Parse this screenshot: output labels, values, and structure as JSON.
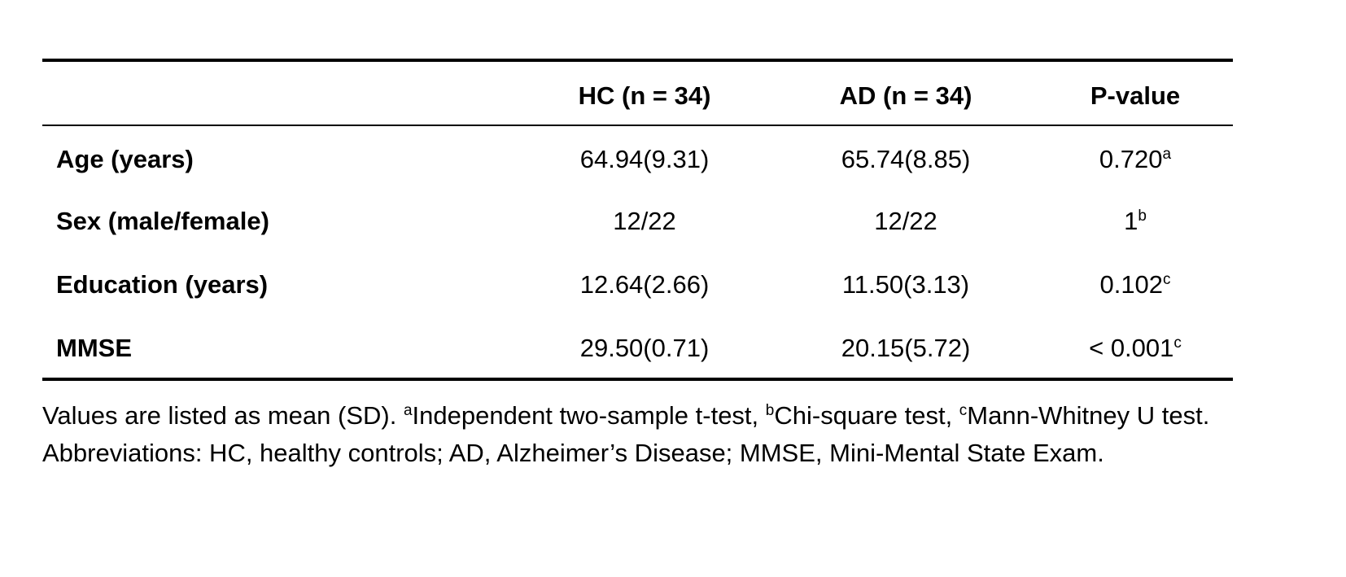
{
  "table": {
    "header": [
      "HC (n = 34)",
      "AD (n = 34)",
      "P-value"
    ],
    "rows": [
      [
        "Age (years)",
        "64.94(9.31)",
        "65.74(8.85)",
        {
          "text": "0.720",
          "sup": "a"
        }
      ],
      [
        "Sex (male/female)",
        "12/22",
        "12/22",
        {
          "text": "1",
          "sup": "b"
        }
      ],
      [
        "Education (years)",
        "12.64(2.66)",
        "11.50(3.13)",
        {
          "text": "0.102",
          "sup": "c"
        }
      ],
      [
        "MMSE",
        "29.50(0.71)",
        "20.15(5.72)",
        {
          "text": "< 0.001",
          "sup": "c"
        }
      ]
    ]
  },
  "note": [
    "Values are listed as mean (SD). ",
    {
      "sup": "a"
    },
    "Independent two-sample t-test, ",
    {
      "sup": "b"
    },
    "Chi-square test, ",
    {
      "sup": "c"
    },
    "Mann-Whitney U test. Abbreviations: HC, healthy controls; AD, Alzheimer’s Disease; MMSE, Mini-Mental State Exam."
  ]
}
